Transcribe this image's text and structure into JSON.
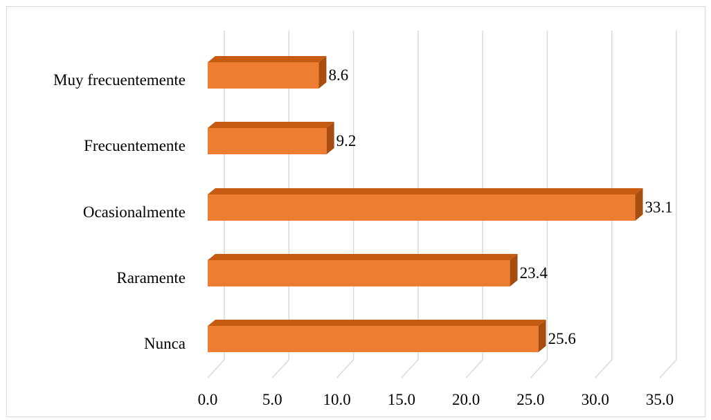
{
  "chart_data": {
    "type": "bar",
    "orientation": "horizontal",
    "three_d": true,
    "title": "",
    "xlabel": "",
    "ylabel": "",
    "categories": [
      "Muy frecuentemente",
      "Frecuentemente",
      "Ocasionalmente",
      "Raramente",
      "Nunca"
    ],
    "values": [
      8.6,
      9.2,
      33.1,
      23.4,
      25.6
    ],
    "value_labels": [
      "8.6",
      "9.2",
      "33.1",
      "23.4",
      "25.6"
    ],
    "xlim": [
      0,
      35
    ],
    "ticks": [
      0,
      5,
      10,
      15,
      20,
      25,
      30,
      35
    ],
    "tick_labels": [
      "0.0",
      "5.0",
      "10.0",
      "15.0",
      "20.0",
      "25.0",
      "30.0",
      "35.0"
    ],
    "grid": true,
    "legend": "none",
    "colors": {
      "bar_front": "#ed7d31",
      "bar_top": "#c55a11",
      "bar_side": "#a84d10",
      "grid": "#d9d9d9",
      "text": "#000000"
    }
  }
}
